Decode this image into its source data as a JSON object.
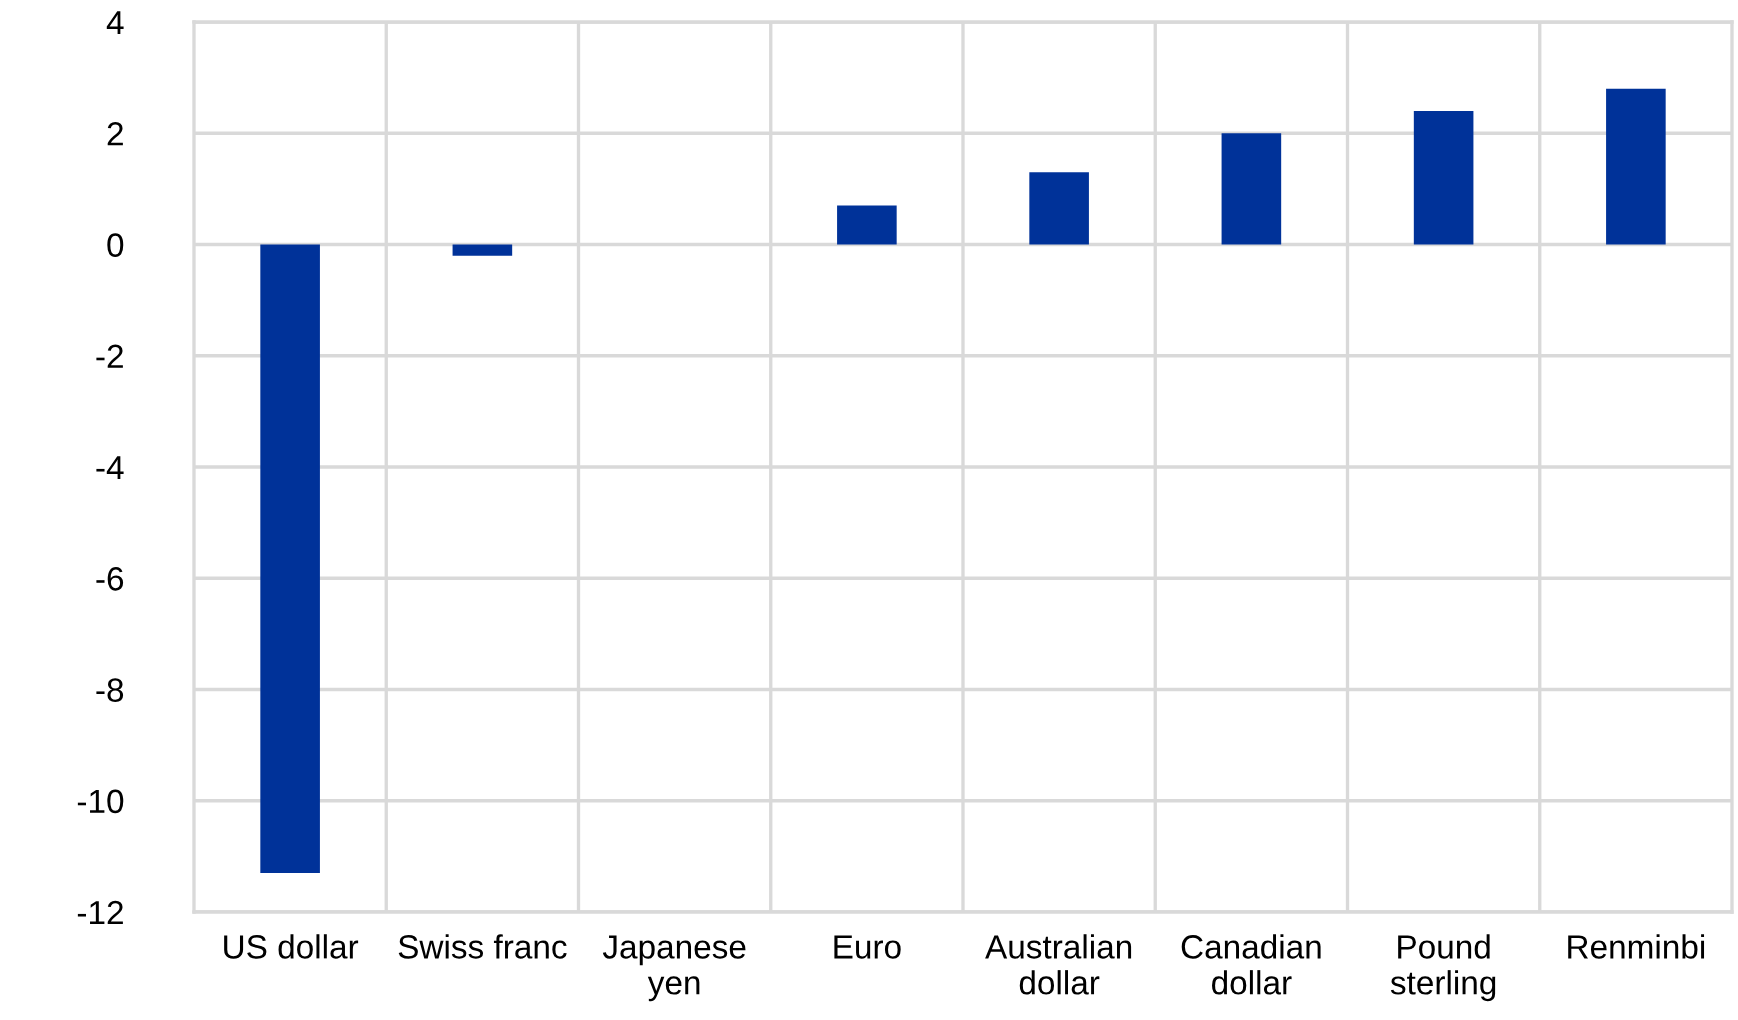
{
  "chart_data": {
    "type": "bar",
    "categories": [
      "US dollar",
      "Swiss franc",
      "Japanese\nyen",
      "Euro",
      "Australian\ndollar",
      "Canadian\ndollar",
      "Pound\nsterling",
      "Renminbi"
    ],
    "values": [
      -11.3,
      -0.2,
      0,
      0.7,
      1.3,
      2.0,
      2.4,
      2.8
    ],
    "color": "#003299",
    "ylim": [
      -12,
      4
    ],
    "yticks": [
      -12,
      -10,
      -8,
      -6,
      -4,
      -2,
      0,
      2,
      4
    ],
    "grid": true
  }
}
